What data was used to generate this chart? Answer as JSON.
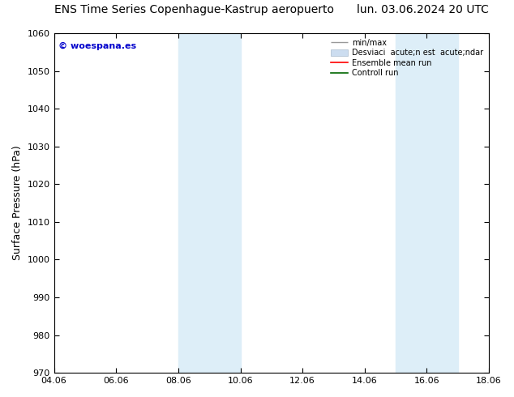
{
  "title_left": "ENS Time Series Copenhague-Kastrup aeropuerto",
  "title_right": "lun. 03.06.2024 20 UTC",
  "ylabel": "Surface Pressure (hPa)",
  "ylim": [
    970,
    1060
  ],
  "yticks": [
    970,
    980,
    990,
    1000,
    1010,
    1020,
    1030,
    1040,
    1050,
    1060
  ],
  "xlim_start": 4.06,
  "xlim_end": 18.06,
  "xtick_labels": [
    "04.06",
    "06.06",
    "08.06",
    "10.06",
    "12.06",
    "14.06",
    "16.06",
    "18.06"
  ],
  "xtick_positions": [
    4.06,
    6.06,
    8.06,
    10.06,
    12.06,
    14.06,
    16.06,
    18.06
  ],
  "shaded_regions": [
    {
      "x_start": 8.06,
      "x_end": 10.06,
      "color": "#ddeef8"
    },
    {
      "x_start": 15.06,
      "x_end": 17.06,
      "color": "#ddeef8"
    }
  ],
  "watermark_text": "© woespana.es",
  "watermark_color": "#0000cc",
  "bg_color": "#ffffff",
  "legend_label_minmax": "min/max",
  "legend_label_std": "Desviaci  acute;n est  acute;ndar",
  "legend_label_ensemble": "Ensemble mean run",
  "legend_label_control": "Controll run",
  "legend_color_minmax": "#999999",
  "legend_color_std": "#ccddf0",
  "legend_color_ensemble": "#ff0000",
  "legend_color_control": "#006600",
  "title_fontsize": 10,
  "axis_label_fontsize": 9,
  "tick_fontsize": 8
}
